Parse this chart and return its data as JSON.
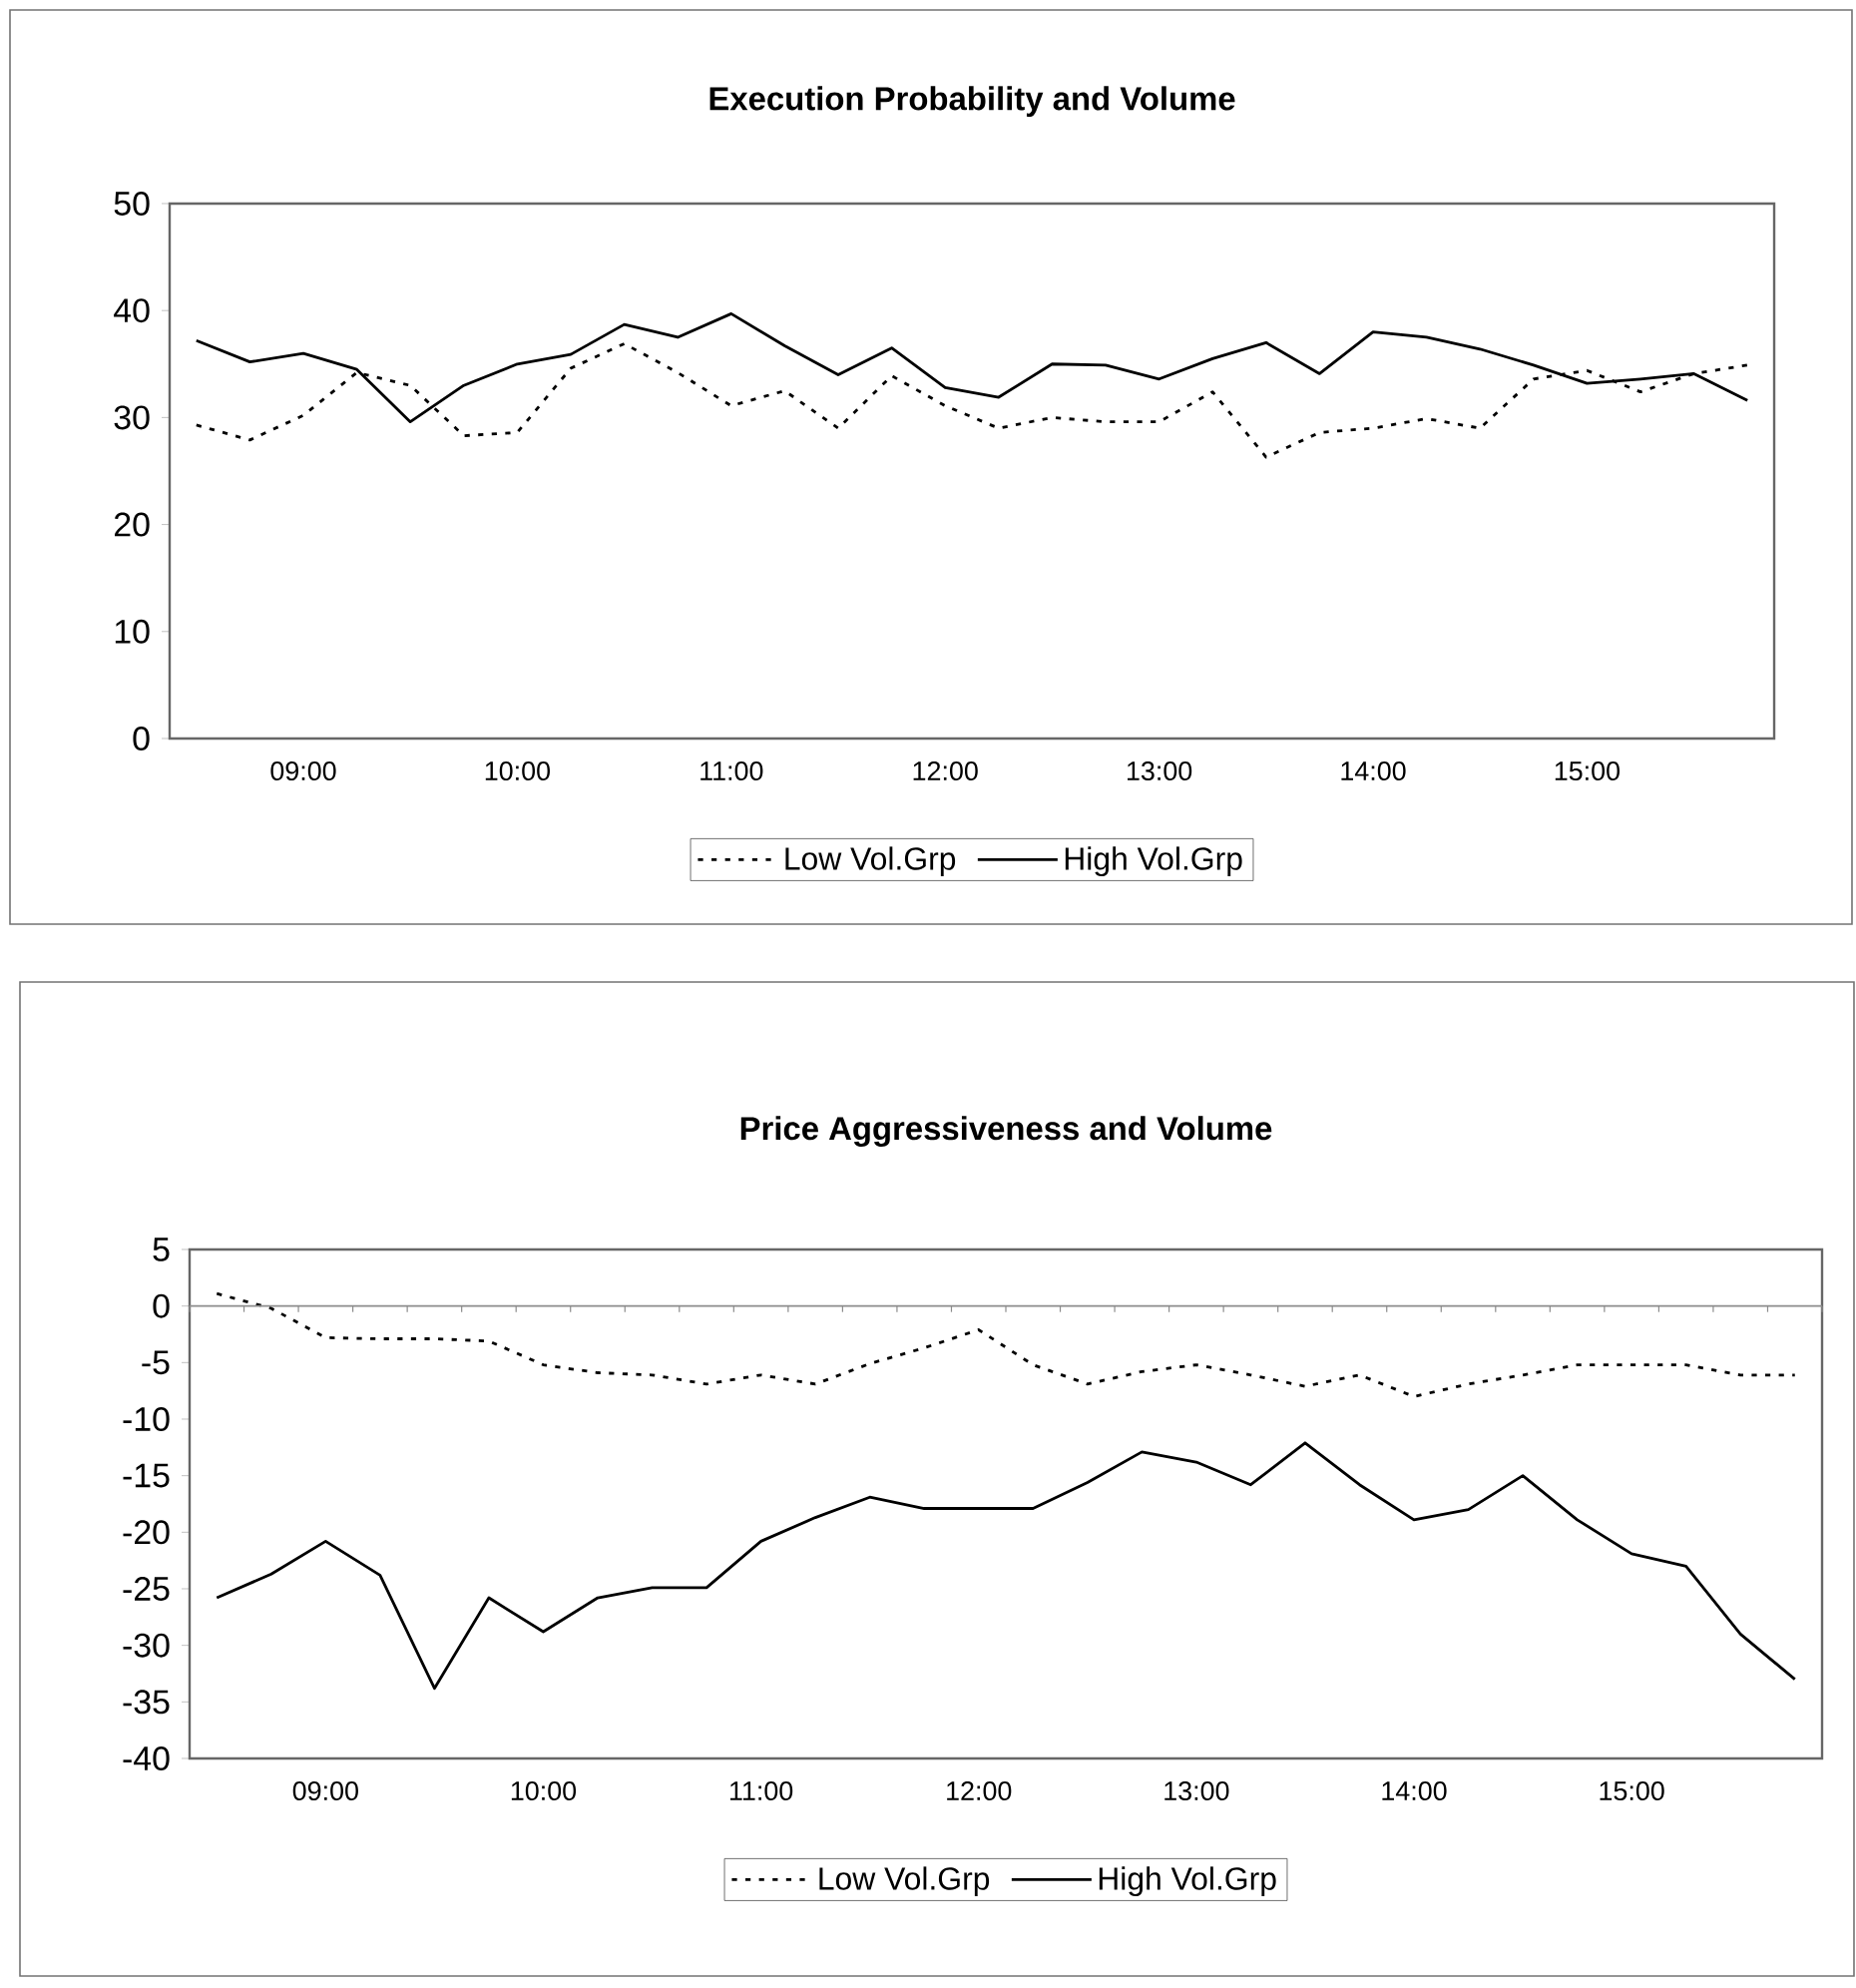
{
  "chart_data": [
    {
      "type": "line",
      "title": "Execution Probability and Volume",
      "categories": [
        null,
        null,
        "09:00",
        null,
        null,
        null,
        "10:00",
        null,
        null,
        null,
        "11:00",
        null,
        null,
        null,
        "12:00",
        null,
        null,
        null,
        "13:00",
        null,
        null,
        null,
        "14:00",
        null,
        null,
        null,
        "15:00",
        null,
        null,
        null
      ],
      "series": [
        {
          "name": "Low Vol.Grp",
          "color": "#000000",
          "line_style": "dashed",
          "values": [
            29.3,
            27.9,
            30.2,
            34.2,
            33.0,
            28.3,
            28.6,
            34.6,
            36.9,
            34.2,
            31.1,
            32.5,
            29.0,
            33.9,
            31.1,
            29.0,
            30.0,
            29.6,
            29.6,
            32.4,
            26.3,
            28.6,
            29.0,
            29.9,
            29.0,
            33.6,
            34.4,
            32.4,
            34.1,
            34.9
          ]
        },
        {
          "name": "High Vol.Grp",
          "color": "#000000",
          "line_style": "solid",
          "values": [
            37.2,
            35.2,
            36.0,
            34.5,
            29.6,
            33.0,
            35.0,
            35.9,
            38.7,
            37.5,
            39.7,
            36.7,
            34.0,
            36.5,
            32.8,
            31.9,
            35.0,
            34.9,
            33.6,
            35.5,
            37.0,
            34.1,
            38.0,
            37.5,
            36.4,
            34.9,
            33.2,
            33.6,
            34.1,
            31.6
          ]
        }
      ],
      "ylim": [
        0,
        50
      ],
      "yticks": [
        0,
        10,
        20,
        30,
        40,
        50
      ],
      "legend": "bottom"
    },
    {
      "type": "line",
      "title": "Price Aggressiveness and Volume",
      "categories": [
        null,
        null,
        "09:00",
        null,
        null,
        null,
        "10:00",
        null,
        null,
        null,
        "11:00",
        null,
        null,
        null,
        "12:00",
        null,
        null,
        null,
        "13:00",
        null,
        null,
        null,
        "14:00",
        null,
        null,
        null,
        "15:00",
        null,
        null,
        null
      ],
      "series": [
        {
          "name": "Low Vol.Grp",
          "color": "#000000",
          "line_style": "dashed",
          "values": [
            1.1,
            -0.2,
            -2.8,
            -2.9,
            -2.9,
            -3.1,
            -5.2,
            -5.9,
            -6.1,
            -6.9,
            -6.1,
            -6.9,
            -5.1,
            -3.7,
            -2.1,
            -5.2,
            -6.9,
            -5.8,
            -5.2,
            -6.1,
            -7.1,
            -6.1,
            -8.0,
            -6.9,
            -6.1,
            -5.2,
            -5.2,
            -5.2,
            -6.1,
            -6.1
          ]
        },
        {
          "name": "High Vol.Grp",
          "color": "#000000",
          "line_style": "solid",
          "values": [
            -25.8,
            -23.7,
            -20.8,
            -23.8,
            -33.8,
            -25.8,
            -28.8,
            -25.8,
            -24.9,
            -24.9,
            -20.8,
            -18.7,
            -16.9,
            -17.9,
            -17.9,
            -17.9,
            -15.6,
            -12.9,
            -13.8,
            -15.8,
            -12.1,
            -15.8,
            -18.9,
            -18.0,
            -15.0,
            -18.9,
            -21.9,
            -23.0,
            -29.0,
            -33.0
          ]
        }
      ],
      "ylim": [
        -40,
        5
      ],
      "yticks": [
        -40,
        -35,
        -30,
        -25,
        -20,
        -15,
        -10,
        -5,
        0,
        5
      ],
      "legend": "bottom"
    }
  ]
}
